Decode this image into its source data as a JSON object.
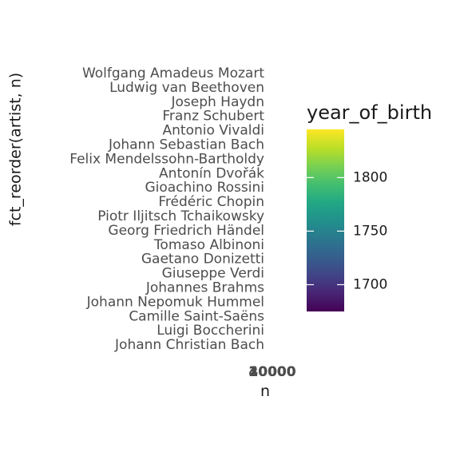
{
  "chart_data": {
    "type": "bar",
    "orientation": "horizontal",
    "ylabel": "fct_reorder(artist, n)",
    "xlabel": "n",
    "categories": [
      "Wolfgang Amadeus Mozart",
      "Ludwig van Beethoven",
      "Joseph Haydn",
      "Franz Schubert",
      "Antonio Vivaldi",
      "Johann Sebastian Bach",
      "Felix Mendelssohn-Bartholdy",
      "Antonín Dvořák",
      "Gioachino Rossini",
      "Frédéric Chopin",
      "Piotr Iljitsch Tchaikowsky",
      "Georg Friedrich Händel",
      "Tomaso Albinoni",
      "Gaetano Donizetti",
      "Giuseppe Verdi",
      "Johannes Brahms",
      "Johann Nepomuk Hummel",
      "Camille Saint-Saëns",
      "Luigi Boccherini",
      "Johann Christian Bach"
    ],
    "x_tick_labels": [
      "0",
      "10000",
      "20000",
      "30000",
      "40000"
    ],
    "legend": {
      "title": "year_of_birth",
      "position": "right",
      "colormap": "viridis",
      "range": [
        1675,
        1845
      ],
      "ticks": [
        {
          "value": 1700,
          "label": "1700"
        },
        {
          "value": 1750,
          "label": "1750"
        },
        {
          "value": 1800,
          "label": "1800"
        }
      ]
    },
    "grid": false
  }
}
